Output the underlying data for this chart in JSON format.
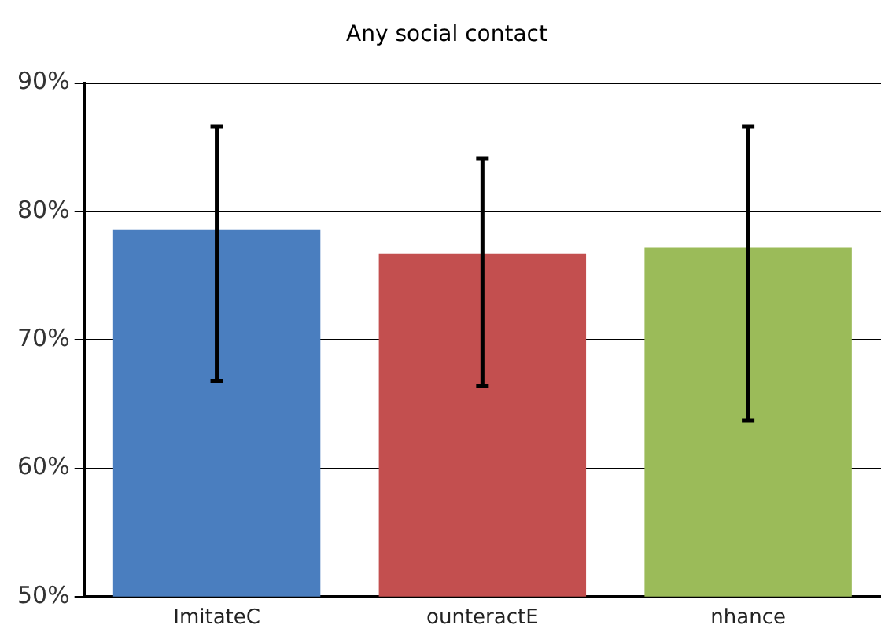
{
  "chart_data": {
    "type": "bar",
    "title": "Any social contact",
    "categories": [
      "ImitateC",
      "ounteractE",
      "nhance"
    ],
    "values": [
      78.6,
      76.7,
      77.2
    ],
    "colors": [
      "#4a7ebf",
      "#c34f4f",
      "#9bbb59"
    ],
    "errors": [
      [
        66.8,
        86.6
      ],
      [
        66.4,
        84.1
      ],
      [
        63.7,
        86.6
      ]
    ],
    "ylim": [
      50,
      90
    ],
    "yticks": [
      {
        "value": 50,
        "label": "50%"
      },
      {
        "value": 60,
        "label": "60%"
      },
      {
        "value": 70,
        "label": "70%"
      },
      {
        "value": 80,
        "label": "80%"
      },
      {
        "value": 90,
        "label": "90%"
      }
    ],
    "grid": "y"
  }
}
